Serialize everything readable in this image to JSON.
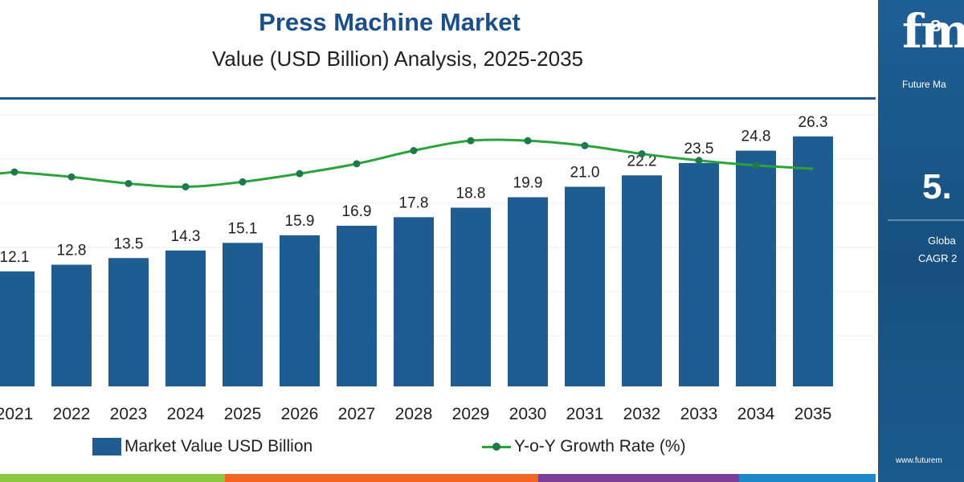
{
  "chart_data": {
    "type": "bar+line",
    "title": "Press Machine Market",
    "subtitle": "Value (USD Billion) Analysis, 2025-2035",
    "categories": [
      "2021",
      "2022",
      "2023",
      "2024",
      "2025",
      "2026",
      "2027",
      "2028",
      "2029",
      "2030",
      "2031",
      "2032",
      "2033",
      "2034",
      "2035"
    ],
    "series": [
      {
        "name": "Market Value USD Billion",
        "type": "bar",
        "values": [
          12.1,
          12.8,
          13.5,
          14.3,
          15.1,
          15.9,
          16.9,
          17.8,
          18.8,
          19.9,
          21.0,
          22.2,
          23.5,
          24.8,
          26.3
        ],
        "labels": [
          "12.1",
          "12.8",
          "13.5",
          "14.3",
          "15.1",
          "15.9",
          "16.9",
          "17.8",
          "18.8",
          "19.9",
          "21.0",
          "22.2",
          "23.5",
          "24.8",
          "26.3"
        ]
      },
      {
        "name": "Y-o-Y Growth Rate (%)",
        "type": "line",
        "values": [
          5.8,
          5.5,
          5.1,
          4.9,
          5.2,
          5.7,
          6.3,
          7.1,
          7.7,
          7.7,
          7.4,
          6.9,
          6.5,
          6.2,
          6.0
        ]
      }
    ],
    "ylim": [
      0,
      30
    ],
    "grid": false,
    "legend_position": "bottom",
    "colors": {
      "bar": "#1f5c92",
      "line": "#29a33a",
      "marker": "#1e7a4a"
    }
  },
  "legend": {
    "bar_label": "Market Value USD Billion",
    "line_label": "Y-o-Y Growth Rate (%)"
  },
  "colors": {
    "title": "#1b4f8a",
    "panel_background": "#1a5688",
    "stripes": [
      "#8cc63f",
      "#f26522",
      "#7b3f98",
      "#1e88c8"
    ]
  },
  "side_panel": {
    "logo": "fm",
    "logo_small": "S",
    "brand": "Future Ma",
    "cagr_value": "5.",
    "cagr_line1": "Globa",
    "cagr_line2": "CAGR 2",
    "website": "www.futurem"
  }
}
